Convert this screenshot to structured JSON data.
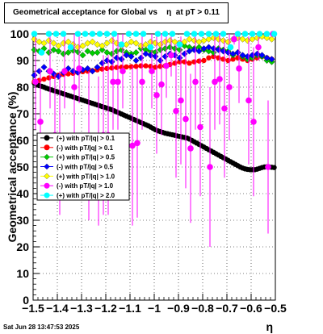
{
  "chart_data": {
    "type": "scatter",
    "title": "Geometrical acceptance for Global vs    η  at pT > 0.11",
    "xlabel": "η",
    "ylabel": "Geometrical acceptance (%)",
    "xlim": [
      -1.5,
      -0.5
    ],
    "ylim": [
      0,
      100
    ],
    "x_ticks": [
      -1.5,
      -1.4,
      -1.3,
      -1.2,
      -1.1,
      -1.0,
      -0.9,
      -0.8,
      -0.7,
      -0.6,
      -0.5
    ],
    "x_tick_labels": [
      "−1.5",
      "−1.4",
      "−1.3",
      "−1.2",
      "−1.1",
      "−1",
      "−0.9",
      "−0.8",
      "−0.7",
      "−0.6",
      "−0.5"
    ],
    "y_ticks": [
      0,
      10,
      20,
      30,
      40,
      50,
      60,
      70,
      80,
      90,
      100
    ],
    "grid": true,
    "legend_position": "center-left",
    "timestamp": "Sat Jun 28 13:47:53 2025",
    "series": [
      {
        "name": "(+) with pT/|q| > 0.1",
        "color": "#000000",
        "marker": "circle",
        "x": [
          -1.495,
          -1.485,
          -1.475,
          -1.465,
          -1.455,
          -1.445,
          -1.435,
          -1.425,
          -1.415,
          -1.405,
          -1.395,
          -1.385,
          -1.375,
          -1.365,
          -1.355,
          -1.345,
          -1.335,
          -1.325,
          -1.315,
          -1.305,
          -1.295,
          -1.285,
          -1.275,
          -1.265,
          -1.255,
          -1.245,
          -1.235,
          -1.225,
          -1.215,
          -1.205,
          -1.195,
          -1.185,
          -1.175,
          -1.165,
          -1.155,
          -1.145,
          -1.135,
          -1.125,
          -1.115,
          -1.105,
          -1.095,
          -1.085,
          -1.075,
          -1.065,
          -1.055,
          -1.045,
          -1.035,
          -1.025,
          -1.015,
          -1.005,
          -0.995,
          -0.985,
          -0.975,
          -0.965,
          -0.955,
          -0.945,
          -0.935,
          -0.925,
          -0.915,
          -0.905,
          -0.895,
          -0.885,
          -0.875,
          -0.865,
          -0.855,
          -0.845,
          -0.835,
          -0.825,
          -0.815,
          -0.805,
          -0.795,
          -0.785,
          -0.775,
          -0.765,
          -0.755,
          -0.745,
          -0.735,
          -0.725,
          -0.715,
          -0.705,
          -0.695,
          -0.685,
          -0.675,
          -0.665,
          -0.655,
          -0.645,
          -0.635,
          -0.625,
          -0.615,
          -0.605,
          -0.595,
          -0.585,
          -0.575,
          -0.565,
          -0.555,
          -0.545,
          -0.535,
          -0.525,
          -0.515,
          -0.505
        ],
        "values": [
          81.5,
          81.0,
          80.6,
          80.3,
          80.0,
          79.6,
          79.3,
          79.0,
          78.7,
          78.4,
          78.1,
          77.8,
          77.5,
          77.2,
          76.9,
          76.6,
          76.3,
          76.0,
          75.7,
          75.4,
          75.1,
          74.8,
          74.5,
          74.2,
          73.9,
          73.6,
          73.3,
          73.0,
          72.7,
          72.4,
          72.1,
          71.8,
          71.5,
          71.1,
          70.7,
          70.3,
          69.9,
          69.5,
          69.1,
          68.7,
          68.3,
          67.9,
          67.5,
          67.1,
          66.7,
          66.3,
          65.9,
          65.5,
          65.0,
          64.5,
          64.0,
          63.6,
          63.3,
          63.0,
          62.7,
          62.5,
          62.3,
          62.1,
          61.9,
          61.7,
          61.5,
          61.3,
          61.1,
          60.9,
          60.5,
          60.0,
          59.5,
          59.0,
          58.5,
          58.0,
          57.5,
          57.0,
          56.5,
          56.0,
          55.5,
          55.0,
          54.5,
          54.0,
          53.5,
          53.0,
          52.5,
          52.0,
          51.5,
          51.0,
          50.5,
          50.0,
          49.6,
          49.3,
          49.1,
          49.0,
          49.0,
          49.0,
          49.2,
          49.5,
          49.8,
          50.0,
          50.1,
          50.0,
          49.9,
          49.8
        ]
      },
      {
        "name": "(-) with pT/|q| > 0.1",
        "color": "#ff0000",
        "marker": "circle",
        "x": [
          -1.495,
          -1.475,
          -1.455,
          -1.435,
          -1.415,
          -1.395,
          -1.375,
          -1.355,
          -1.335,
          -1.315,
          -1.295,
          -1.275,
          -1.255,
          -1.235,
          -1.215,
          -1.195,
          -1.175,
          -1.155,
          -1.135,
          -1.115,
          -1.095,
          -1.075,
          -1.055,
          -1.035,
          -1.015,
          -0.995,
          -0.975,
          -0.955,
          -0.935,
          -0.915,
          -0.895,
          -0.875,
          -0.855,
          -0.835,
          -0.815,
          -0.795,
          -0.775,
          -0.755,
          -0.735,
          -0.715,
          -0.695,
          -0.675,
          -0.655,
          -0.635,
          -0.615,
          -0.595,
          -0.575,
          -0.555,
          -0.535,
          -0.515
        ],
        "values": [
          82.0,
          82.5,
          83.0,
          83.5,
          84.0,
          84.5,
          84.8,
          85.0,
          85.2,
          85.5,
          85.8,
          86.0,
          86.2,
          86.5,
          86.8,
          87.0,
          87.2,
          87.4,
          87.5,
          87.6,
          87.7,
          87.8,
          88.0,
          88.0,
          87.8,
          87.5,
          87.8,
          88.0,
          88.5,
          89.0,
          89.5,
          89.5,
          89.0,
          89.5,
          89.8,
          90.0,
          91.0,
          91.5,
          91.0,
          90.5,
          90.0,
          90.5,
          91.0,
          90.5,
          90.0,
          90.5,
          91.0,
          91.5,
          91.0,
          90.5
        ]
      },
      {
        "name": "(+) with pT/|q| > 0.5",
        "color": "#00cc00",
        "marker": "diamond",
        "x": [
          -1.495,
          -1.475,
          -1.455,
          -1.435,
          -1.415,
          -1.395,
          -1.375,
          -1.355,
          -1.335,
          -1.315,
          -1.295,
          -1.275,
          -1.255,
          -1.235,
          -1.215,
          -1.195,
          -1.175,
          -1.155,
          -1.135,
          -1.115,
          -1.095,
          -1.075,
          -1.055,
          -1.035,
          -1.015,
          -0.995,
          -0.975,
          -0.955,
          -0.935,
          -0.915,
          -0.895,
          -0.875,
          -0.855,
          -0.835,
          -0.815,
          -0.795,
          -0.775,
          -0.755,
          -0.735,
          -0.715,
          -0.695,
          -0.675,
          -0.655,
          -0.635,
          -0.615,
          -0.595,
          -0.575,
          -0.555,
          -0.535,
          -0.515
        ],
        "values": [
          94.0,
          93.5,
          94.5,
          93.0,
          94.0,
          93.5,
          92.5,
          93.0,
          93.8,
          93.2,
          92.0,
          93.5,
          92.8,
          93.0,
          94.0,
          93.0,
          92.5,
          93.5,
          94.0,
          93.0,
          92.5,
          93.0,
          94.5,
          94.0,
          93.5,
          93.0,
          94.0,
          94.5,
          95.0,
          94.5,
          94.0,
          95.5,
          95.0,
          94.5,
          95.0,
          94.0,
          93.5,
          93.0,
          94.5,
          94.0,
          93.5,
          92.0,
          93.0,
          91.5,
          90.5,
          91.0,
          92.0,
          91.5,
          90.0,
          89.5
        ]
      },
      {
        "name": "(-) with pT/|q| > 0.5",
        "color": "#0000ff",
        "marker": "diamond",
        "x": [
          -1.495,
          -1.475,
          -1.455,
          -1.435,
          -1.415,
          -1.395,
          -1.375,
          -1.355,
          -1.335,
          -1.315,
          -1.295,
          -1.275,
          -1.255,
          -1.235,
          -1.215,
          -1.195,
          -1.175,
          -1.155,
          -1.135,
          -1.115,
          -1.095,
          -1.075,
          -1.055,
          -1.035,
          -1.015,
          -0.995,
          -0.975,
          -0.955,
          -0.935,
          -0.915,
          -0.895,
          -0.875,
          -0.855,
          -0.835,
          -0.815,
          -0.795,
          -0.775,
          -0.755,
          -0.735,
          -0.715,
          -0.695,
          -0.675,
          -0.655,
          -0.635,
          -0.615,
          -0.595,
          -0.575,
          -0.555,
          -0.535,
          -0.515
        ],
        "values": [
          84.5,
          86.0,
          87.5,
          86.0,
          85.0,
          84.0,
          85.5,
          87.0,
          86.0,
          85.5,
          86.5,
          87.0,
          86.0,
          87.5,
          89.0,
          90.0,
          89.5,
          91.0,
          90.5,
          92.0,
          91.5,
          90.0,
          91.0,
          92.5,
          92.0,
          91.5,
          90.0,
          91.5,
          92.5,
          92.0,
          91.0,
          92.5,
          93.5,
          94.0,
          93.5,
          94.5,
          95.0,
          94.5,
          94.0,
          93.5,
          93.0,
          92.5,
          93.0,
          92.0,
          91.5,
          92.0,
          92.5,
          92.0,
          91.0,
          90.5
        ]
      },
      {
        "name": "(+) with pT/|q| > 1.0",
        "color": "#ffff00",
        "marker": "diamond",
        "x": [
          -1.495,
          -1.475,
          -1.455,
          -1.435,
          -1.415,
          -1.395,
          -1.375,
          -1.355,
          -1.335,
          -1.315,
          -1.295,
          -1.275,
          -1.255,
          -1.235,
          -1.215,
          -1.195,
          -1.175,
          -1.155,
          -1.135,
          -1.115,
          -1.095,
          -1.075,
          -1.055,
          -1.035,
          -1.015,
          -0.995,
          -0.975,
          -0.955,
          -0.935,
          -0.915,
          -0.895,
          -0.875,
          -0.855,
          -0.835,
          -0.815,
          -0.795,
          -0.775,
          -0.755,
          -0.735,
          -0.715,
          -0.695,
          -0.675,
          -0.655,
          -0.635,
          -0.615,
          -0.595,
          -0.575,
          -0.555,
          -0.535,
          -0.515
        ],
        "values": [
          98.0,
          97.0,
          96.5,
          97.5,
          96.5,
          95.5,
          96.5,
          97.0,
          96.0,
          95.0,
          95.5,
          96.5,
          97.0,
          96.0,
          95.5,
          96.5,
          97.5,
          96.5,
          95.5,
          96.0,
          97.0,
          96.5,
          95.5,
          96.0,
          97.0,
          96.5,
          96.0,
          97.0,
          97.5,
          97.0,
          96.5,
          97.0,
          98.0,
          97.5,
          97.0,
          97.5,
          98.0,
          98.5,
          98.0,
          97.5,
          97.0,
          98.0,
          98.5,
          98.0,
          97.5,
          98.0,
          98.5,
          99.0,
          98.5,
          98.0
        ]
      },
      {
        "name": "(-) with pT/|q| > 1.0",
        "color": "#ff00ff",
        "marker": "circle",
        "errorbars": true,
        "x": [
          -1.49,
          -1.47,
          -1.43,
          -1.41,
          -1.39,
          -1.37,
          -1.33,
          -1.31,
          -1.27,
          -1.23,
          -1.21,
          -1.19,
          -1.17,
          -1.15,
          -1.13,
          -1.09,
          -1.07,
          -1.05,
          -1.01,
          -0.99,
          -0.97,
          -0.95,
          -0.93,
          -0.91,
          -0.89,
          -0.87,
          -0.85,
          -0.83,
          -0.81,
          -0.77,
          -0.75,
          -0.73,
          -0.71,
          -0.69,
          -0.67,
          -0.65,
          -0.61,
          -0.59,
          -0.57,
          -0.53,
          -0.51
        ],
        "values": [
          82,
          67,
          86,
          62,
          59,
          86,
          80,
          87,
          58,
          56,
          62,
          62,
          82,
          82,
          86,
          58,
          59,
          82,
          86,
          77,
          81,
          88,
          92,
          71,
          75,
          68,
          57,
          82,
          65,
          50,
          82,
          83,
          72,
          80,
          98,
          87,
          75,
          67,
          95,
          50,
          100
        ],
        "errors": [
          18,
          20,
          14,
          23,
          27,
          14,
          20,
          13,
          28,
          28,
          30,
          30,
          18,
          18,
          14,
          30,
          28,
          18,
          14,
          22,
          19,
          12,
          8,
          25,
          24,
          26,
          28,
          18,
          26,
          30,
          18,
          17,
          26,
          20,
          2,
          13,
          24,
          28,
          5,
          25,
          0
        ]
      },
      {
        "name": "(+) with pT/|q| > 2.0",
        "color": "#00ffff",
        "marker": "circle",
        "x": [
          -1.495,
          -1.465,
          -1.435,
          -1.405,
          -1.375,
          -1.345,
          -1.315,
          -1.285,
          -1.255,
          -1.225,
          -1.195,
          -1.165,
          -1.135,
          -1.105,
          -1.075,
          -1.045,
          -1.015,
          -0.985,
          -0.955,
          -0.925,
          -0.895,
          -0.865,
          -0.835,
          -0.805,
          -0.775,
          -0.745,
          -0.715,
          -0.685,
          -0.655,
          -0.625,
          -0.595,
          -0.565,
          -0.535,
          -0.505
        ],
        "values": [
          100,
          93,
          100,
          100,
          100,
          95,
          100,
          100,
          100,
          100,
          100,
          100,
          96,
          100,
          100,
          100,
          95,
          100,
          100,
          100,
          96,
          100,
          100,
          100,
          100,
          100,
          100,
          95,
          100,
          100,
          100,
          100,
          100,
          100
        ]
      }
    ]
  }
}
